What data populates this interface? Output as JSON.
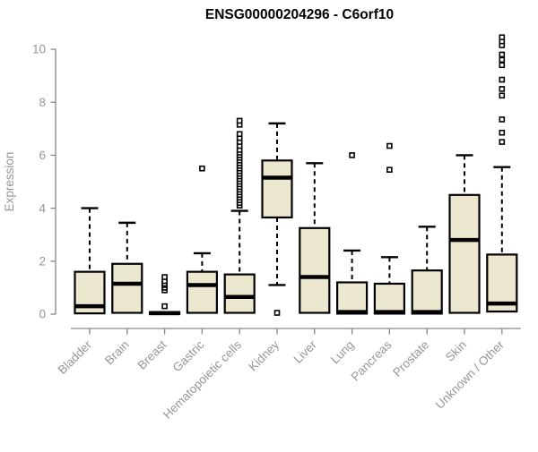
{
  "chart_data": {
    "type": "box",
    "title": "ENSG00000204296 - C6orf10",
    "ylabel": "Expression",
    "xlabel": "",
    "ylim": [
      0,
      10.45
    ],
    "yticks": [
      0,
      2,
      4,
      6,
      8,
      10
    ],
    "grid": false,
    "legend": false,
    "colors": {
      "box_fill": "#ece7cf",
      "box_stroke": "#000000",
      "axis_line": "#878787",
      "axis_text": "#969696",
      "title_text": "#000000"
    },
    "categories": [
      "Bladder",
      "Brain",
      "Breast",
      "Gastric",
      "Hematopoietic cells",
      "Kidney",
      "Liver",
      "Lung",
      "Pancreas",
      "Prostate",
      "Skin",
      "Unknown / Other"
    ],
    "series": [
      {
        "category": "Bladder",
        "whisker_low": 0,
        "q1": 0.03,
        "median": 0.3,
        "q3": 1.6,
        "whisker_high": 4.0,
        "outliers": []
      },
      {
        "category": "Brain",
        "whisker_low": 0.05,
        "q1": 0.05,
        "median": 1.15,
        "q3": 1.9,
        "whisker_high": 3.45,
        "outliers": []
      },
      {
        "category": "Breast",
        "whisker_low": 0,
        "q1": 0,
        "median": 0.04,
        "q3": 0.08,
        "whisker_high": 0.1,
        "outliers": [
          0.3,
          0.9,
          1.0,
          1.1,
          1.15,
          1.25,
          1.4
        ]
      },
      {
        "category": "Gastric",
        "whisker_low": 0,
        "q1": 0.05,
        "median": 1.1,
        "q3": 1.6,
        "whisker_high": 2.3,
        "outliers": [
          5.5
        ]
      },
      {
        "category": "Hematopoietic cells",
        "whisker_low": 0,
        "q1": 0.05,
        "median": 0.65,
        "q3": 1.5,
        "whisker_high": 3.9,
        "outliers": [
          4.1,
          4.2,
          4.3,
          4.4,
          4.5,
          4.6,
          4.7,
          4.8,
          4.9,
          5.0,
          5.1,
          5.2,
          5.3,
          5.4,
          5.5,
          5.6,
          5.7,
          5.8,
          5.9,
          6.0,
          6.1,
          6.2,
          6.35,
          6.5,
          6.65,
          6.8,
          7.15,
          7.3
        ]
      },
      {
        "category": "Kidney",
        "whisker_low": 1.1,
        "q1": 3.65,
        "median": 5.15,
        "q3": 5.8,
        "whisker_high": 7.2,
        "outliers": [
          0.05
        ]
      },
      {
        "category": "Liver",
        "whisker_low": 0,
        "q1": 0.05,
        "median": 1.4,
        "q3": 3.25,
        "whisker_high": 5.7,
        "outliers": []
      },
      {
        "category": "Lung",
        "whisker_low": 0,
        "q1": 0.02,
        "median": 0.08,
        "q3": 1.2,
        "whisker_high": 2.4,
        "outliers": [
          6.0
        ]
      },
      {
        "category": "Pancreas",
        "whisker_low": 0,
        "q1": 0.02,
        "median": 0.08,
        "q3": 1.15,
        "whisker_high": 2.15,
        "outliers": [
          5.45,
          6.35
        ]
      },
      {
        "category": "Prostate",
        "whisker_low": 0,
        "q1": 0.02,
        "median": 0.08,
        "q3": 1.65,
        "whisker_high": 3.3,
        "outliers": []
      },
      {
        "category": "Skin",
        "whisker_low": 0,
        "q1": 0.05,
        "median": 2.8,
        "q3": 4.5,
        "whisker_high": 6.0,
        "outliers": []
      },
      {
        "category": "Unknown / Other",
        "whisker_low": 0,
        "q1": 0.1,
        "median": 0.4,
        "q3": 2.25,
        "whisker_high": 5.55,
        "outliers": [
          6.5,
          6.85,
          7.35,
          8.25,
          8.5,
          8.85,
          9.4,
          9.6,
          9.8,
          10.15,
          10.3,
          10.45
        ]
      }
    ]
  }
}
